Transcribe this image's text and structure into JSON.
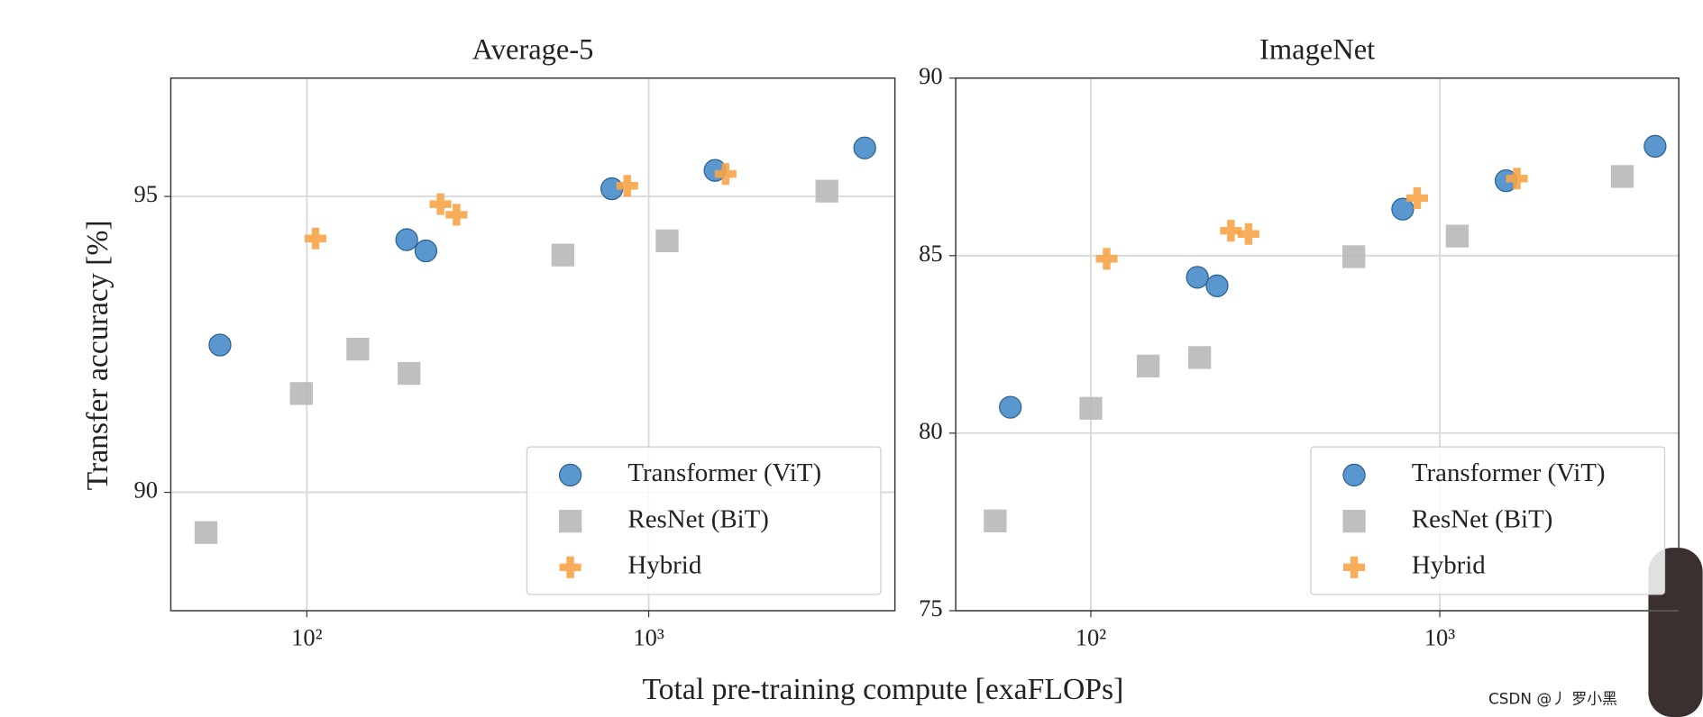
{
  "chart_data": [
    {
      "type": "scatter",
      "title": "Average-5",
      "ylabel": "Transfer accuracy [%]",
      "xscale": "log",
      "xlim": [
        40,
        5250
      ],
      "xticks": [
        {
          "value": 100,
          "label": "10²"
        },
        {
          "value": 1000,
          "label": "10³"
        }
      ],
      "ylim": [
        88,
        97
      ],
      "yticks": [
        90,
        95
      ],
      "grid": true,
      "legend": "lower right",
      "series": [
        {
          "name": "Transformer (ViT)",
          "color": "#3d85c6",
          "marker": "circle",
          "x": [
            55.7,
            196,
            223,
            780,
            1563,
            4285
          ],
          "values": [
            92.49,
            94.27,
            94.08,
            95.13,
            95.44,
            95.82
          ]
        },
        {
          "name": "ResNet (BiT)",
          "color": "#b8b8b8",
          "marker": "square",
          "x": [
            50.7,
            96.4,
            141,
            199,
            561,
            1132,
            3321
          ],
          "values": [
            89.32,
            91.67,
            92.42,
            92.01,
            94.01,
            94.25,
            95.09
          ]
        },
        {
          "name": "Hybrid",
          "color": "#f7a448",
          "marker": "plus",
          "x": [
            106,
            246,
            274,
            865,
            1678
          ],
          "values": [
            94.29,
            94.87,
            94.69,
            95.18,
            95.38
          ]
        }
      ]
    },
    {
      "type": "scatter",
      "title": "ImageNet",
      "xscale": "log",
      "xlim": [
        41,
        4840
      ],
      "xticks": [
        {
          "value": 100,
          "label": "10²"
        },
        {
          "value": 1000,
          "label": "10³"
        }
      ],
      "ylim": [
        75,
        90
      ],
      "yticks": [
        75,
        80,
        85,
        90
      ],
      "grid": true,
      "legend": "lower right",
      "series": [
        {
          "name": "Transformer (ViT)",
          "color": "#3d85c6",
          "marker": "circle",
          "x": [
            58.8,
            202,
            230,
            783,
            1549,
            4140
          ],
          "values": [
            80.73,
            84.39,
            84.15,
            86.31,
            87.11,
            88.08
          ]
        },
        {
          "name": "ResNet (BiT)",
          "color": "#b8b8b8",
          "marker": "square",
          "x": [
            53.2,
            100,
            146,
            205,
            567,
            1122,
            3335
          ],
          "values": [
            77.53,
            80.7,
            81.89,
            82.13,
            84.97,
            85.55,
            87.23
          ]
        },
        {
          "name": "Hybrid",
          "color": "#f7a448",
          "marker": "plus",
          "x": [
            111,
            252,
            283,
            861,
            1663
          ],
          "values": [
            84.91,
            85.7,
            85.61,
            86.62,
            87.17
          ]
        }
      ]
    }
  ],
  "xlabel": "Total pre-training compute [exaFLOPs]",
  "watermark": "CSDN @丿 罗小黑"
}
